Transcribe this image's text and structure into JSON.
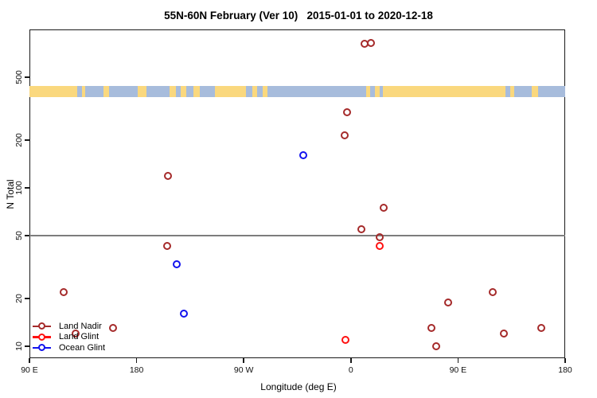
{
  "title": "55N-60N February (Ver 10)   2015-01-01 to 2020-12-18",
  "colors": {
    "land_nadir": "#A52A2A",
    "land_glint": "#FF1010",
    "ocean_glint": "#1212EE",
    "map_land": "#FAD87E",
    "map_ocean": "#A7BCDC",
    "reference_line": "#7d7d7d",
    "axis": "#1a1a1a"
  },
  "chart_data": {
    "type": "scatter",
    "title": "55N-60N February (Ver 10)   2015-01-01 to 2020-12-18",
    "xlabel": "Longitude (deg E)",
    "ylabel": "N Total",
    "x_axis": {
      "note": "longitude axis runs 90E eastward wrapping to 180 (axis coords 90..540 deg); points with lon 90E-180 appear twice",
      "range_axis_deg": [
        90,
        540
      ],
      "ticks": [
        {
          "axis_deg": 90,
          "label": "90 E"
        },
        {
          "axis_deg": 180,
          "label": "180"
        },
        {
          "axis_deg": 270,
          "label": "90 W"
        },
        {
          "axis_deg": 360,
          "label": "0"
        },
        {
          "axis_deg": 450,
          "label": "90 E"
        },
        {
          "axis_deg": 540,
          "label": "180"
        }
      ]
    },
    "y_axis": {
      "scale": "log",
      "ylim": [
        8,
        1000
      ],
      "ticks": [
        10,
        20,
        50,
        100,
        200,
        500
      ]
    },
    "reference_line_y": 50,
    "map_strip": {
      "description": "land/ocean band for 55N-60N latitude",
      "n_range": [
        374,
        440
      ],
      "ocean_span_axis_deg": [
        90,
        540
      ],
      "land_segments_axis_deg": [
        [
          90,
          130
        ],
        [
          134,
          137
        ],
        [
          152,
          157
        ],
        [
          181,
          188
        ],
        [
          208,
          213
        ],
        [
          217,
          222
        ],
        [
          228,
          233
        ],
        [
          246,
          272
        ],
        [
          277,
          281
        ],
        [
          286,
          290
        ],
        [
          373,
          376
        ],
        [
          380,
          384
        ],
        [
          387,
          490
        ],
        [
          494,
          497
        ],
        [
          512,
          517
        ]
      ]
    },
    "series": [
      {
        "name": "Land Nadir",
        "color_key": "land_nadir",
        "points": [
          {
            "lon": 11.5,
            "n": 810
          },
          {
            "lon": 17,
            "n": 825
          },
          {
            "lon": -3.3,
            "n": 300
          },
          {
            "lon": -5.5,
            "n": 215
          },
          {
            "lon": -153.5,
            "n": 119
          },
          {
            "lon": 27.5,
            "n": 75
          },
          {
            "lon": 8.8,
            "n": 55
          },
          {
            "lon": 24,
            "n": 49
          },
          {
            "lon": -154.3,
            "n": 43
          },
          {
            "lon": 119,
            "n": 22
          },
          {
            "lon": 82,
            "n": 19
          },
          {
            "lon": 67.5,
            "n": 13
          },
          {
            "lon": 72,
            "n": 10
          },
          {
            "lon": 128.5,
            "n": 12
          },
          {
            "lon": 160,
            "n": 13
          }
        ]
      },
      {
        "name": "Land Glint",
        "color_key": "land_glint",
        "points": [
          {
            "lon": 24,
            "n": 43
          },
          {
            "lon": -4.5,
            "n": 11
          }
        ]
      },
      {
        "name": "Ocean Glint",
        "color_key": "ocean_glint",
        "points": [
          {
            "lon": -40,
            "n": 160
          },
          {
            "lon": -146.5,
            "n": 33
          },
          {
            "lon": -140.5,
            "n": 16
          }
        ]
      }
    ],
    "legend": {
      "position": "bottom-left",
      "entries": [
        "Land Nadir",
        "Land Glint",
        "Ocean Glint"
      ]
    }
  }
}
